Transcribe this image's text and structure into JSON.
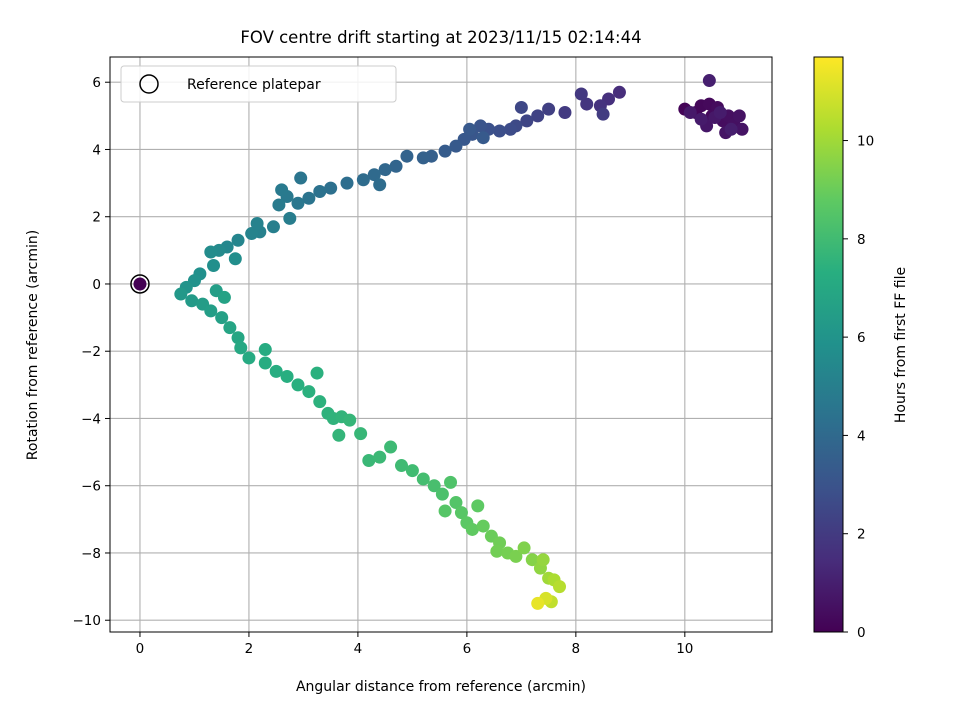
{
  "chart_data": {
    "type": "scatter",
    "title": "FOV centre drift starting at 2023/11/15 02:14:44",
    "xlabel": "Angular distance from reference (arcmin)",
    "ylabel": "Rotation from reference (arcmin)",
    "xlim": [
      -0.55,
      11.6
    ],
    "ylim": [
      -10.35,
      6.75
    ],
    "xticks": [
      0,
      2,
      4,
      6,
      8,
      10
    ],
    "yticks": [
      -10,
      -8,
      -6,
      -4,
      -2,
      0,
      2,
      4,
      6
    ],
    "grid": true,
    "legend": {
      "placement": "upper-left",
      "entries": [
        "Reference platepar"
      ]
    },
    "colorbar": {
      "label": "Hours from first FF file",
      "range": [
        0,
        11.7
      ],
      "ticks": [
        0,
        2,
        4,
        6,
        8,
        10
      ],
      "colormap": "viridis"
    },
    "reference_point": {
      "x": 0,
      "y": 0
    },
    "series": [
      {
        "points": [
          [
            0,
            0,
            0
          ],
          [
            10.0,
            5.2,
            0.1
          ],
          [
            10.2,
            5.1,
            0.15
          ],
          [
            10.3,
            5.3,
            0.2
          ],
          [
            10.45,
            5.35,
            0.25
          ],
          [
            10.5,
            5.0,
            0.3
          ],
          [
            10.6,
            5.25,
            0.35
          ],
          [
            10.7,
            4.85,
            0.4
          ],
          [
            10.8,
            5.0,
            0.45
          ],
          [
            10.9,
            4.75,
            0.5
          ],
          [
            11.0,
            5.0,
            0.55
          ],
          [
            11.05,
            4.6,
            0.6
          ],
          [
            10.75,
            4.5,
            0.65
          ],
          [
            10.4,
            4.7,
            0.7
          ],
          [
            10.55,
            4.95,
            0.75
          ],
          [
            10.1,
            5.1,
            0.8
          ],
          [
            10.3,
            4.9,
            0.85
          ],
          [
            10.65,
            5.1,
            0.9
          ],
          [
            10.85,
            4.6,
            0.95
          ],
          [
            10.45,
            6.05,
            1.0
          ],
          [
            8.8,
            5.7,
            1.5
          ],
          [
            8.6,
            5.5,
            1.6
          ],
          [
            8.45,
            5.3,
            1.7
          ],
          [
            8.2,
            5.35,
            1.8
          ],
          [
            8.1,
            5.65,
            1.9
          ],
          [
            7.8,
            5.1,
            2.0
          ],
          [
            8.5,
            5.05,
            2.05
          ],
          [
            7.5,
            5.2,
            2.2
          ],
          [
            7.3,
            5.0,
            2.3
          ],
          [
            7.1,
            4.85,
            2.4
          ],
          [
            7.0,
            5.25,
            2.5
          ],
          [
            6.9,
            4.7,
            2.6
          ],
          [
            6.8,
            4.6,
            2.7
          ],
          [
            6.6,
            4.55,
            2.8
          ],
          [
            6.4,
            4.6,
            2.9
          ],
          [
            6.25,
            4.7,
            3.0
          ],
          [
            6.1,
            4.45,
            3.1
          ],
          [
            5.95,
            4.3,
            3.2
          ],
          [
            5.8,
            4.1,
            3.3
          ],
          [
            6.05,
            4.6,
            3.25
          ],
          [
            6.3,
            4.35,
            3.3
          ],
          [
            5.6,
            3.95,
            3.4
          ],
          [
            5.35,
            3.8,
            3.5
          ],
          [
            5.2,
            3.75,
            3.6
          ],
          [
            4.9,
            3.8,
            3.7
          ],
          [
            4.7,
            3.5,
            3.8
          ],
          [
            4.5,
            3.4,
            3.9
          ],
          [
            4.3,
            3.25,
            4.0
          ],
          [
            4.1,
            3.1,
            4.1
          ],
          [
            4.4,
            2.95,
            4.1
          ],
          [
            3.8,
            3.0,
            4.2
          ],
          [
            3.5,
            2.85,
            4.3
          ],
          [
            3.3,
            2.75,
            4.4
          ],
          [
            3.1,
            2.55,
            4.5
          ],
          [
            2.95,
            3.15,
            4.55
          ],
          [
            2.9,
            2.4,
            4.6
          ],
          [
            2.7,
            2.6,
            4.7
          ],
          [
            2.55,
            2.35,
            4.8
          ],
          [
            2.6,
            2.8,
            4.75
          ],
          [
            2.75,
            1.95,
            4.9
          ],
          [
            2.45,
            1.7,
            5.0
          ],
          [
            2.2,
            1.55,
            5.1
          ],
          [
            2.05,
            1.5,
            5.2
          ],
          [
            2.15,
            1.8,
            5.15
          ],
          [
            1.8,
            1.3,
            5.3
          ],
          [
            1.6,
            1.1,
            5.4
          ],
          [
            1.45,
            1.0,
            5.5
          ],
          [
            1.3,
            0.95,
            5.6
          ],
          [
            1.1,
            0.3,
            5.8
          ],
          [
            1.75,
            0.75,
            5.7
          ],
          [
            1.0,
            0.1,
            5.9
          ],
          [
            0.85,
            -0.1,
            6.0
          ],
          [
            1.35,
            0.55,
            5.75
          ],
          [
            0.75,
            -0.3,
            6.2
          ],
          [
            0.95,
            -0.5,
            6.3
          ],
          [
            1.15,
            -0.6,
            6.4
          ],
          [
            1.3,
            -0.8,
            6.5
          ],
          [
            1.5,
            -1.0,
            6.6
          ],
          [
            1.4,
            -0.2,
            6.5
          ],
          [
            1.65,
            -1.3,
            6.8
          ],
          [
            1.8,
            -1.6,
            6.9
          ],
          [
            1.85,
            -1.9,
            7.0
          ],
          [
            1.55,
            -0.4,
            6.7
          ],
          [
            2.0,
            -2.2,
            7.1
          ],
          [
            2.3,
            -1.95,
            7.15
          ],
          [
            2.3,
            -2.35,
            7.2
          ],
          [
            2.5,
            -2.6,
            7.25
          ],
          [
            2.7,
            -2.75,
            7.3
          ],
          [
            2.9,
            -3.0,
            7.35
          ],
          [
            3.1,
            -3.2,
            7.4
          ],
          [
            3.25,
            -2.65,
            7.4
          ],
          [
            3.3,
            -3.5,
            7.45
          ],
          [
            3.45,
            -3.85,
            7.5
          ],
          [
            3.55,
            -4.0,
            7.55
          ],
          [
            3.7,
            -3.95,
            7.6
          ],
          [
            3.65,
            -4.5,
            7.65
          ],
          [
            3.85,
            -4.05,
            7.7
          ],
          [
            4.05,
            -4.45,
            7.75
          ],
          [
            4.2,
            -5.25,
            7.8
          ],
          [
            4.4,
            -5.15,
            7.85
          ],
          [
            4.6,
            -4.85,
            7.9
          ],
          [
            4.8,
            -5.4,
            7.95
          ],
          [
            5.0,
            -5.55,
            8.0
          ],
          [
            5.2,
            -5.8,
            8.1
          ],
          [
            5.4,
            -6.0,
            8.2
          ],
          [
            5.55,
            -6.25,
            8.3
          ],
          [
            5.7,
            -5.9,
            8.4
          ],
          [
            5.8,
            -6.5,
            8.5
          ],
          [
            5.9,
            -6.8,
            8.6
          ],
          [
            5.6,
            -6.75,
            8.55
          ],
          [
            6.0,
            -7.1,
            8.7
          ],
          [
            6.1,
            -7.3,
            8.8
          ],
          [
            6.2,
            -6.6,
            8.75
          ],
          [
            6.3,
            -7.2,
            8.9
          ],
          [
            6.45,
            -7.5,
            9.0
          ],
          [
            6.6,
            -7.7,
            9.1
          ],
          [
            6.55,
            -7.95,
            9.15
          ],
          [
            6.75,
            -8.0,
            9.2
          ],
          [
            6.9,
            -8.1,
            9.3
          ],
          [
            7.05,
            -7.85,
            9.4
          ],
          [
            7.2,
            -8.2,
            9.5
          ],
          [
            7.35,
            -8.45,
            9.7
          ],
          [
            7.4,
            -8.2,
            9.8
          ],
          [
            7.5,
            -8.75,
            10.0
          ],
          [
            7.6,
            -8.8,
            10.2
          ],
          [
            7.7,
            -9.0,
            10.4
          ],
          [
            7.55,
            -9.45,
            10.6
          ],
          [
            7.45,
            -9.35,
            11.0
          ],
          [
            7.3,
            -9.5,
            11.3
          ]
        ]
      }
    ]
  }
}
